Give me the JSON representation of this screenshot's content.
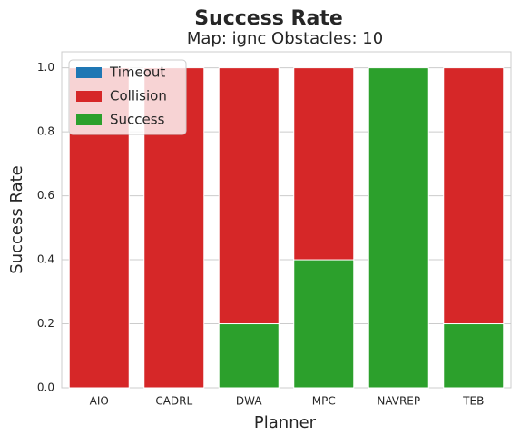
{
  "chart_data": {
    "type": "bar",
    "stacked": true,
    "title": "Success Rate",
    "subtitle": "Map: ignc Obstacles: 10",
    "xlabel": "Planner",
    "ylabel": "Success Rate",
    "categories": [
      "AIO",
      "CADRL",
      "DWA",
      "MPC",
      "NAVREP",
      "TEB"
    ],
    "series": [
      {
        "name": "Timeout",
        "color": "#1f77b4",
        "values": [
          0,
          0,
          0,
          0,
          0,
          0
        ]
      },
      {
        "name": "Collision",
        "color": "#d62728",
        "values": [
          1,
          1,
          0.8,
          0.6,
          0,
          0.8
        ]
      },
      {
        "name": "Success",
        "color": "#2ca02c",
        "values": [
          0,
          0,
          0.2,
          0.4,
          1,
          0.2
        ]
      }
    ],
    "ylim": [
      0,
      1.05
    ],
    "yticks": [
      {
        "value": 0,
        "label": "0.0"
      },
      0.2,
      0.4,
      0.6,
      0.8,
      {
        "value": 1,
        "label": "1.0"
      }
    ],
    "grid": true,
    "legend": "upper left"
  }
}
